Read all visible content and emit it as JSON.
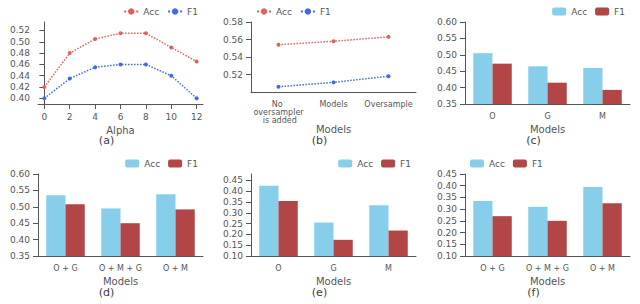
{
  "chart_data": [
    {
      "type": "line",
      "title": "(a)",
      "xlabel": "Alpha",
      "x": [
        0,
        2,
        4,
        6,
        8,
        10,
        12
      ],
      "xlim": [
        -0.5,
        12.5
      ],
      "xticks": [
        0,
        2,
        4,
        6,
        8,
        10,
        12
      ],
      "series": [
        {
          "name": "Acc",
          "color": "#E06060",
          "marker": "circle",
          "line_style": "dotted",
          "values": [
            0.42,
            0.48,
            0.505,
            0.515,
            0.515,
            0.49,
            0.465
          ]
        },
        {
          "name": "F1",
          "color": "#4169E1",
          "marker": "circle",
          "line_style": "dotted",
          "values": [
            0.4,
            0.435,
            0.455,
            0.46,
            0.46,
            0.44,
            0.4
          ]
        }
      ],
      "ylim": [
        0.39,
        0.535
      ],
      "yticks": [
        {
          "value": 0.4,
          "label": "0.40"
        },
        0.42,
        0.44,
        0.46,
        0.48,
        {
          "value": 0.5,
          "label": "0.50"
        },
        0.52
      ],
      "legend": "upper right",
      "grid": false
    },
    {
      "type": "line",
      "title": "(b)",
      "xlabel": "Models",
      "categories": [
        "No oversampler is added",
        "Models",
        "Oversample"
      ],
      "series": [
        {
          "name": "Acc",
          "color": "#E06060",
          "marker": "circle",
          "line_style": "dotted",
          "values": [
            0.554,
            0.558,
            0.563
          ]
        },
        {
          "name": "F1",
          "color": "#4169E1",
          "marker": "circle",
          "line_style": "dotted",
          "values": [
            0.506,
            0.511,
            0.518
          ]
        }
      ],
      "ylim": [
        0.5,
        0.58
      ],
      "yticks": [
        0.52,
        0.54,
        0.56,
        0.58
      ],
      "legend": "upper left",
      "grid": false
    },
    {
      "type": "bar",
      "title": "(c)",
      "xlabel": "Models",
      "categories": [
        "O",
        "G",
        "M"
      ],
      "series": [
        {
          "name": "Acc",
          "color": "#87CEEB",
          "values": [
            0.505,
            0.465,
            0.46
          ]
        },
        {
          "name": "F1",
          "color": "#B24545",
          "values": [
            0.473,
            0.415,
            0.393
          ]
        }
      ],
      "ylim": [
        0.35,
        0.6
      ],
      "yticks": [
        0.35,
        {
          "value": 0.4,
          "label": "0.40"
        },
        0.45,
        {
          "value": 0.5,
          "label": "0.50"
        },
        0.55,
        {
          "value": 0.6,
          "label": "0.60"
        }
      ],
      "legend": "upper right",
      "grid": false
    },
    {
      "type": "bar",
      "title": "(d)",
      "xlabel": "Models",
      "categories": [
        "O + G",
        "O + M + G",
        "O + M"
      ],
      "series": [
        {
          "name": "Acc",
          "color": "#87CEEB",
          "values": [
            0.535,
            0.495,
            0.538
          ]
        },
        {
          "name": "F1",
          "color": "#B24545",
          "values": [
            0.508,
            0.45,
            0.492
          ]
        }
      ],
      "ylim": [
        0.35,
        0.6
      ],
      "yticks": [
        0.35,
        {
          "value": 0.4,
          "label": "0.40"
        },
        0.45,
        {
          "value": 0.5,
          "label": "0.50"
        },
        0.55,
        {
          "value": 0.6,
          "label": "0.60"
        }
      ],
      "legend": "upper right",
      "grid": false
    },
    {
      "type": "bar",
      "title": "(e)",
      "xlabel": "Models",
      "categories": [
        "O",
        "G",
        "M"
      ],
      "series": [
        {
          "name": "Acc",
          "color": "#87CEEB",
          "values": [
            0.425,
            0.255,
            0.335
          ]
        },
        {
          "name": "F1",
          "color": "#B24545",
          "values": [
            0.355,
            0.175,
            0.218
          ]
        }
      ],
      "ylim": [
        0.1,
        0.48
      ],
      "yticks": [
        {
          "value": 0.1,
          "label": "0.10"
        },
        0.15,
        {
          "value": 0.2,
          "label": "0.20"
        },
        0.25,
        {
          "value": 0.3,
          "label": "0.30"
        },
        0.35,
        {
          "value": 0.4,
          "label": "0.40"
        },
        0.45
      ],
      "legend": "upper right",
      "grid": false
    },
    {
      "type": "bar",
      "title": "(f)",
      "xlabel": "Models",
      "categories": [
        "O + G",
        "O + M + G",
        "O + M"
      ],
      "series": [
        {
          "name": "Acc",
          "color": "#87CEEB",
          "values": [
            0.335,
            0.31,
            0.395
          ]
        },
        {
          "name": "F1",
          "color": "#B24545",
          "values": [
            0.27,
            0.25,
            0.325
          ]
        }
      ],
      "ylim": [
        0.1,
        0.45
      ],
      "yticks": [
        {
          "value": 0.1,
          "label": "0.10"
        },
        0.15,
        {
          "value": 0.2,
          "label": "0.20"
        },
        0.25,
        {
          "value": 0.3,
          "label": "0.30"
        },
        0.35,
        {
          "value": 0.4,
          "label": "0.40"
        },
        0.45
      ],
      "legend": "upper left",
      "grid": false
    }
  ]
}
